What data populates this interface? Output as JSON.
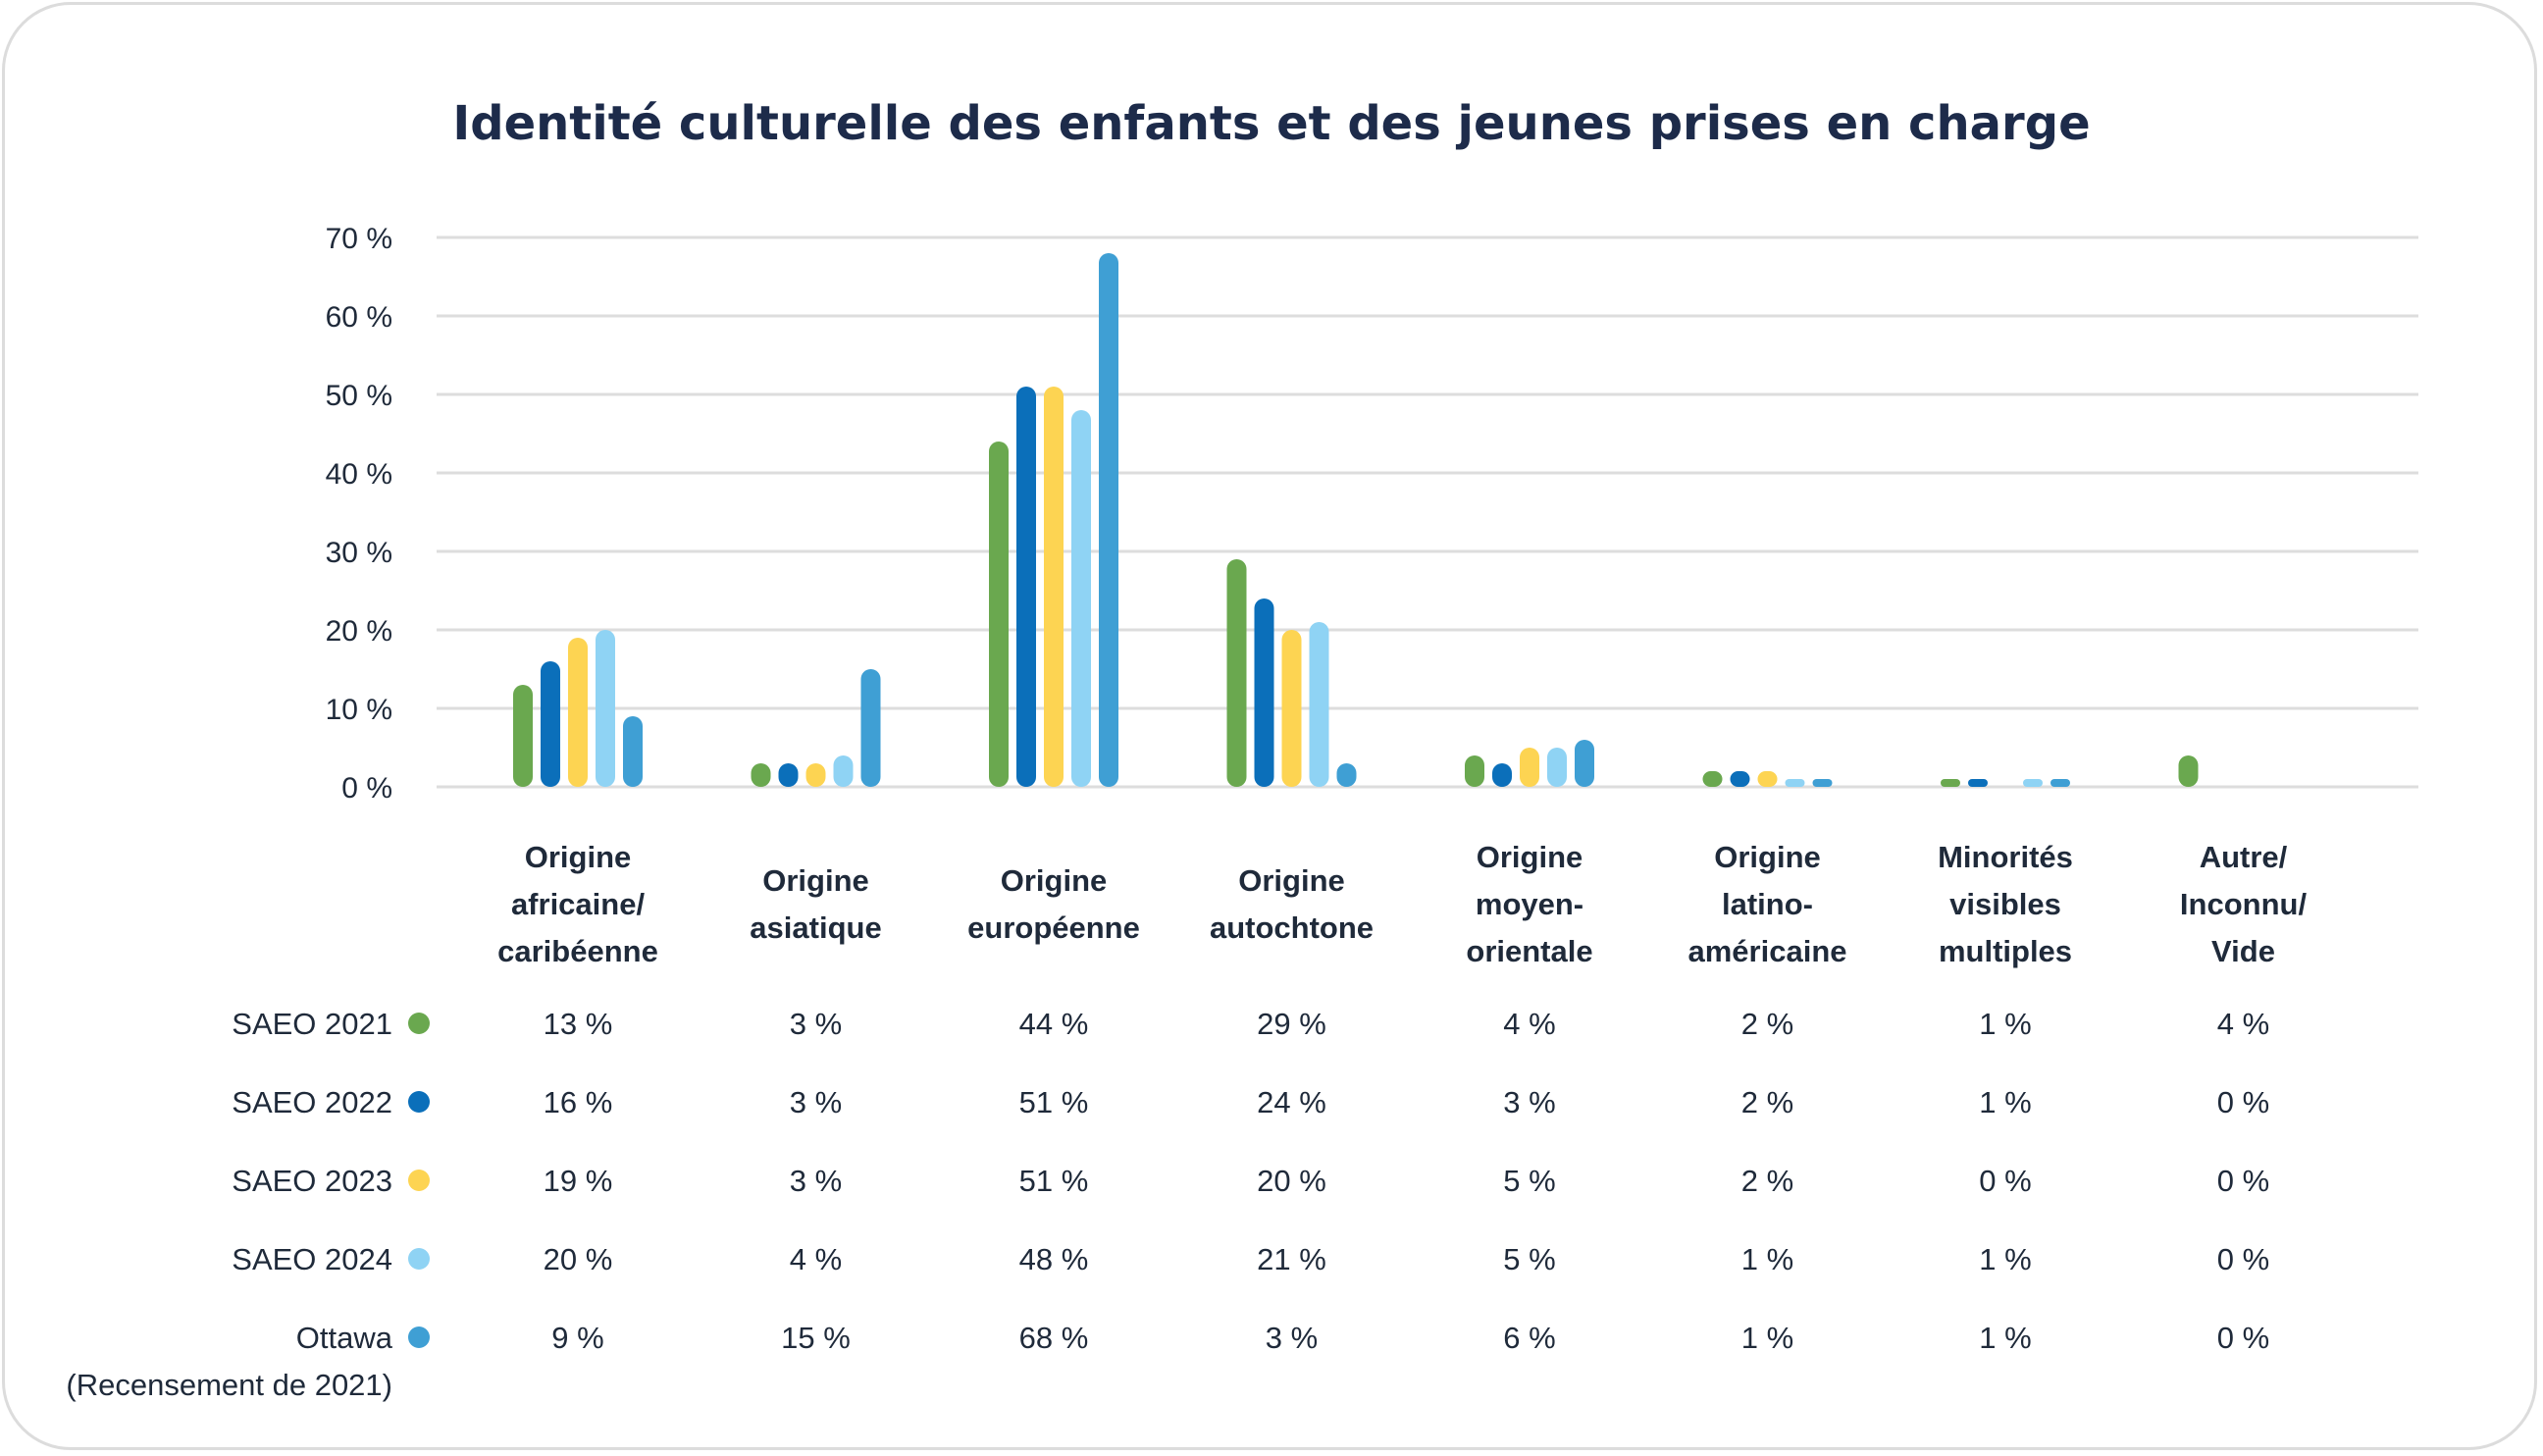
{
  "chart_data": {
    "type": "bar",
    "title": "Identité culturelle des enfants et des jeunes prises en charge",
    "xlabel": "",
    "ylabel": "",
    "ylim": [
      0,
      70
    ],
    "yticks": [
      "0 %",
      "10 %",
      "20 %",
      "30 %",
      "40 %",
      "50 %",
      "60 %",
      "70 %"
    ],
    "grid": true,
    "legend": "table-below",
    "categories": [
      [
        "Origine",
        "africaine/",
        "caribéenne"
      ],
      [
        "Origine",
        "asiatique"
      ],
      [
        "Origine",
        "européenne"
      ],
      [
        "Origine",
        "autochtone"
      ],
      [
        "Origine",
        "moyen-",
        "orientale"
      ],
      [
        "Origine",
        "latino-",
        "américaine"
      ],
      [
        "Minorités",
        "visibles",
        "multiples"
      ],
      [
        "Autre/",
        "Inconnu/",
        "Vide"
      ]
    ],
    "series": [
      {
        "name": "SAEO 2021",
        "color": "#6aa84f",
        "values": [
          13,
          3,
          44,
          29,
          4,
          2,
          1,
          4
        ],
        "labels": [
          "13 %",
          "3 %",
          "44 %",
          "29 %",
          "4 %",
          "2 %",
          "1 %",
          "4 %"
        ]
      },
      {
        "name": "SAEO 2022",
        "color": "#0b6fba",
        "values": [
          16,
          3,
          51,
          24,
          3,
          2,
          1,
          0
        ],
        "labels": [
          "16 %",
          "3 %",
          "51 %",
          "24 %",
          "3 %",
          "2 %",
          "1 %",
          "0 %"
        ]
      },
      {
        "name": "SAEO 2023",
        "color": "#fdd452",
        "values": [
          19,
          3,
          51,
          20,
          5,
          2,
          0,
          0
        ],
        "labels": [
          "19 %",
          "3 %",
          "51 %",
          "20 %",
          "5 %",
          "2 %",
          "0 %",
          "0 %"
        ]
      },
      {
        "name": "SAEO 2024",
        "color": "#8fd3f4",
        "values": [
          20,
          4,
          48,
          21,
          5,
          1,
          1,
          0
        ],
        "labels": [
          "20 %",
          "4 %",
          "48 %",
          "21 %",
          "5 %",
          "1 %",
          "1 %",
          "0 %"
        ]
      },
      {
        "name": "Ottawa",
        "subname": "(Recensement de 2021)",
        "color": "#3f9fd4",
        "values": [
          9,
          15,
          68,
          3,
          6,
          1,
          1,
          0
        ],
        "labels": [
          "9 %",
          "15 %",
          "68 %",
          "3 %",
          "6 %",
          "1 %",
          "1 %",
          "0 %"
        ]
      }
    ]
  }
}
